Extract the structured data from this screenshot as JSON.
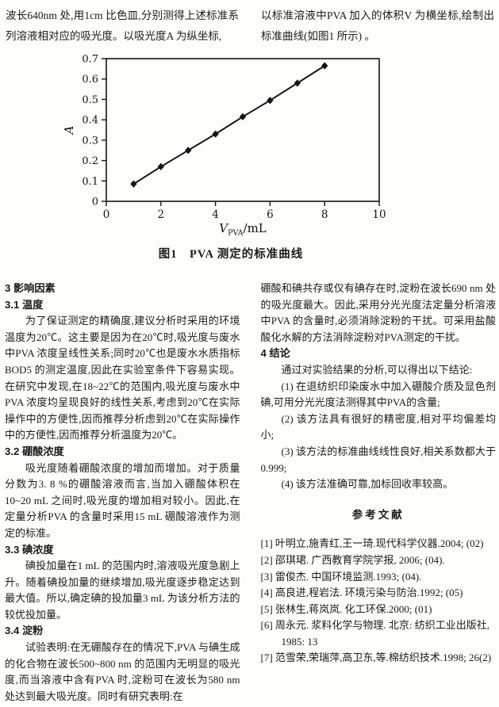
{
  "colors": {
    "ink": "#1b1b1b",
    "paper": "#fdfdfb",
    "chart_line": "#151515"
  },
  "intro": {
    "left": "波长640nm 处,用1cm 比色皿,分别测得上述标准系列溶液相对应的吸光度。以吸光度A 为纵坐标,",
    "right": "以标准溶液中PVA 加入的体积V 为横坐标,绘制出标准曲线(如图1 所示) 。"
  },
  "figure": {
    "caption": "图1　PVA 测定的标准曲线"
  },
  "chart_data": {
    "type": "line",
    "title": "PVA 测定的标准曲线",
    "x": [
      1,
      2,
      3,
      4,
      5,
      6,
      7,
      8
    ],
    "y": [
      0.085,
      0.17,
      0.25,
      0.33,
      0.415,
      0.495,
      0.58,
      0.665
    ],
    "xlabel": "V_PVA/mL",
    "xlabel_parts": {
      "symbol": "V",
      "subscript": "PVA",
      "unit": "/mL"
    },
    "ylabel": "A",
    "xlim": [
      0,
      10
    ],
    "ylim": [
      0,
      0.7
    ],
    "xticks": [
      0,
      2,
      4,
      6,
      8,
      10
    ],
    "yticks": [
      0,
      0.1,
      0.2,
      0.3,
      0.4,
      0.5,
      0.6,
      0.7
    ],
    "marker": "diamond",
    "line_color": "#151515",
    "grid": false,
    "legend": false
  },
  "sections": {
    "left_column": [
      {
        "type": "heading",
        "text": "3 影响因素"
      },
      {
        "type": "heading",
        "text": "3.1 温度"
      },
      {
        "type": "para",
        "text": "为了保证测定的精确度,建议分析时采用的环境温度为20℃。这主要是因为在20℃时,吸光度与废水中PVA 浓度呈线性关系;同时20℃也是废水水质指标BOD5 的测定温度,因此在实验室条件下容易实现。在研究中发现,在18~22℃的范围内,吸光度与废水中PVA 浓度均呈现良好的线性关系,考虑到20℃在实际操作中的方便性,因而推荐分析虑到20℃在实际操作中的方便性,因而推荐分析温度为20℃。"
      },
      {
        "type": "heading",
        "text": "3.2 硼酸浓度"
      },
      {
        "type": "para",
        "text": "吸光度随着硼酸浓度的增加而增加。对于质量分数为3. 8 %的硼酸溶液而言,当加入硼酸体积在10~20 mL 之间时,吸光度的增加相对较小。因此,在定量分析PVA 的含量时采用15 mL 硼酸溶液作为测定的标准。"
      },
      {
        "type": "heading",
        "text": "3.3 碘浓度"
      },
      {
        "type": "para",
        "text": "碘投加量在1 mL 的范围内时,溶液吸光度急剧上升。随着碘投加量的继续增加,吸光度逐步稳定达到最大值。所以,确定碘的投加量3 mL 为该分析方法的较优投加量。"
      },
      {
        "type": "heading",
        "text": "3.4 淀粉"
      },
      {
        "type": "para",
        "text": "试验表明:在无硼酸存在的情况下,PVA 与碘生成的化合物在波长500~800 nm 的范围内无明显的吸光度,而当溶液中含有PVA 时,淀粉可在波长为580 nm 处达到最大吸光度。同时有研究表明:在"
      }
    ],
    "right_column": [
      {
        "type": "para_cont",
        "text": "硼酸和碘共存或仅有碘存在时,淀粉在波长690 nm 处的吸光度最大。因此,采用分光光度法定量分析溶液中PVA 的含量时,必须消除淀粉的干扰。可采用盐酸酸化水解的方法消除淀粉对PVA测定的干扰。"
      },
      {
        "type": "heading",
        "text": "4 结论"
      },
      {
        "type": "para",
        "text": "通过对实验结果的分析,可以得出以下结论:"
      },
      {
        "type": "para",
        "text": "(1) 在退纺织印染废水中加入硼酸介质及显色剂碘,可用分光光度法测得其中PVA的含量;"
      },
      {
        "type": "para",
        "text": "(2) 该方法具有很好的精密度,相对平均偏差均小;"
      },
      {
        "type": "para",
        "text": "(3) 该方法的标准曲线线性良好,相关系数都大于0.999;"
      },
      {
        "type": "para",
        "text": "(4) 该方法准确可靠,加标回收率较高。"
      }
    ]
  },
  "references": {
    "heading": "参考文献",
    "items": [
      "[1] 叶明立,施青红,王一琦.现代科学仪器.2004; (02)",
      "[2] 邵琪珺. 广西教育学院学报, 2006; (04).",
      "[3] 雷俊杰. 中国环境监测.1993; (04).",
      "[4] 高良进,程岩法. 环境污染与防治.1992; (05)",
      "[5] 张林生,蒋岚岚. 化工环保.2000; (01)",
      "[6] 周永元. 浆料化学与物理. 北京: 纺织工业出版社, 1985: 13",
      "[7] 范雪荣,荣瑞萍,高卫东,等.棉纺织技术.1998;  26(2)"
    ]
  }
}
